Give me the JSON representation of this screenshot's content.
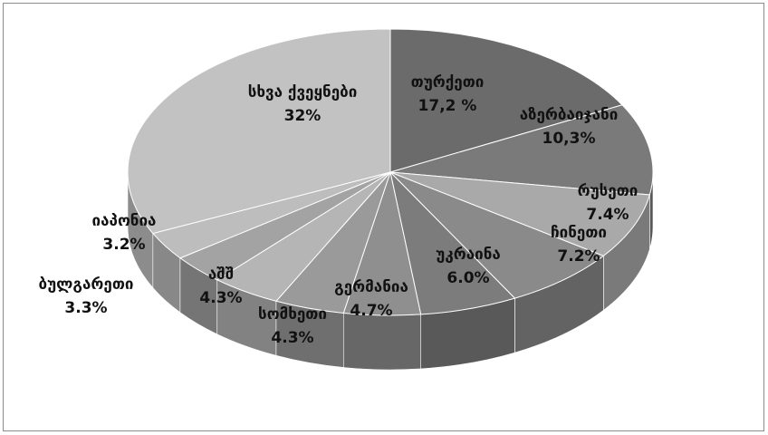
{
  "chart_data": {
    "type": "pie",
    "style": "3d-exploded-none",
    "categories": [
      "თურქეთი",
      "აზერბაიჯანი",
      "რუსეთი",
      "ჩინეთი",
      "უკრაინა",
      "გერმანია",
      "სომხეთი",
      "აშშ",
      "ბულგარეთი",
      "იაპონია",
      "სხვა ქვეყნები"
    ],
    "value_labels": [
      "17,2 %",
      "10,3%",
      "7.4%",
      "7.2%",
      "6.0%",
      "4.7%",
      "4.3%",
      "4.3%",
      "3.3%",
      "3.2%",
      "32%"
    ],
    "values": [
      17.2,
      10.3,
      7.4,
      7.2,
      6.0,
      4.7,
      4.3,
      4.3,
      3.3,
      3.2,
      32.0
    ],
    "colors": [
      "#6b6b6b",
      "#7a7a7a",
      "#a9a9a9",
      "#8a8a8a",
      "#7c7c7c",
      "#8f8f8f",
      "#9a9a9a",
      "#b5b5b5",
      "#a3a3a3",
      "#bdbdbd",
      "#c2c2c2"
    ],
    "legend": "none",
    "title": ""
  }
}
